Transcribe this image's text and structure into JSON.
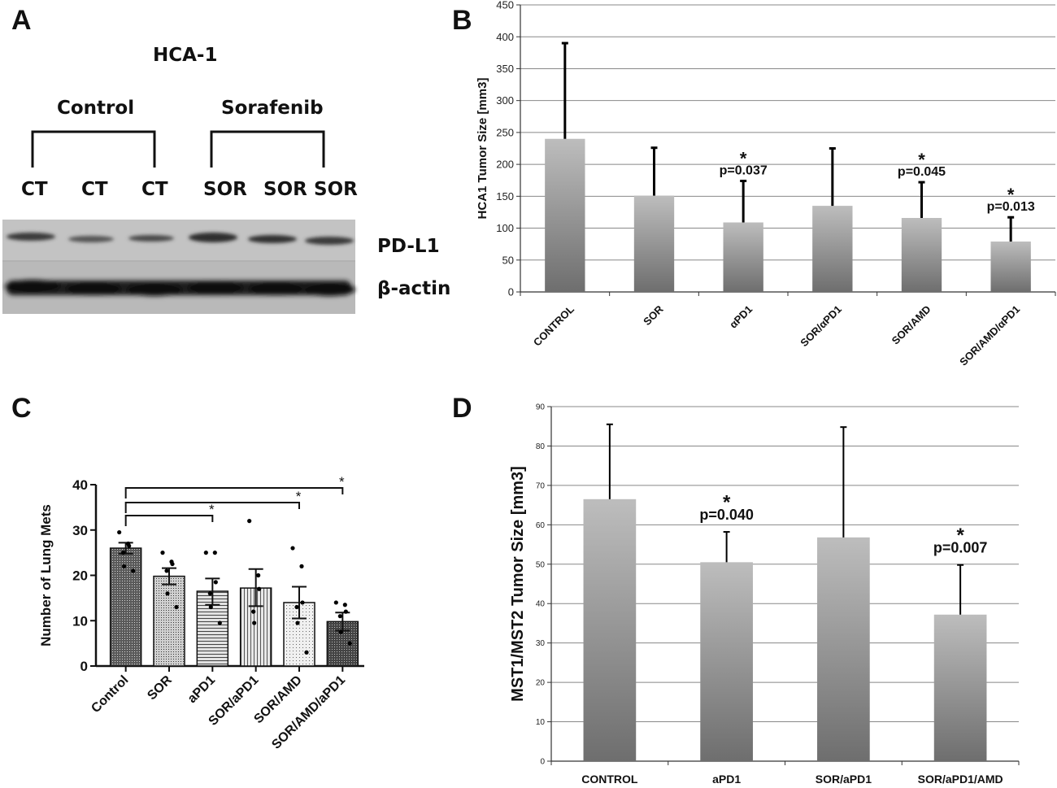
{
  "panels": {
    "A": {
      "letter": "A",
      "cell_line": "HCA-1",
      "group_control": "Control",
      "group_treated": "Sorafenib",
      "lanes": [
        "CT",
        "CT",
        "CT",
        "SOR",
        "SOR",
        "SOR"
      ],
      "band_labels": [
        "PD-L1",
        "β-actin"
      ]
    },
    "B": {
      "letter": "B"
    },
    "C": {
      "letter": "C"
    },
    "D": {
      "letter": "D"
    }
  },
  "chart_data": [
    {
      "id": "B",
      "type": "bar",
      "title": "",
      "ylabel": "HCA1 Tumor Size  [mm3]",
      "xlabel": "",
      "ylim": [
        0,
        450
      ],
      "yticks": [
        0,
        50,
        100,
        150,
        200,
        250,
        300,
        350,
        400,
        450
      ],
      "grid": true,
      "categories": [
        "CONTROL",
        "SOR",
        "αPD1",
        "SOR/αPD1",
        "SOR/AMD",
        "SOR/AMD/αPD1"
      ],
      "values": [
        240,
        151,
        109,
        135,
        116,
        79
      ],
      "error_upper": [
        390,
        226,
        174,
        225,
        172,
        117
      ],
      "annotations": [
        {
          "category": "αPD1",
          "star": "*",
          "text": "p=0.037"
        },
        {
          "category": "SOR/AMD",
          "star": "*",
          "text": "p=0.045"
        },
        {
          "category": "SOR/AMD/αPD1",
          "star": "*",
          "text": "p=0.013"
        }
      ]
    },
    {
      "id": "C",
      "type": "bar",
      "title": "",
      "ylabel": "Number of Lung Mets",
      "xlabel": "",
      "ylim": [
        0,
        40
      ],
      "yticks": [
        0,
        10,
        20,
        30,
        40
      ],
      "grid": false,
      "categories": [
        "Control",
        "SOR",
        "aPD1",
        "SOR/aPD1",
        "SOR/AMD",
        "SOR/AMD/aPD1"
      ],
      "values": [
        26,
        19.8,
        16.5,
        17.2,
        14,
        9.8
      ],
      "error_low": [
        24.8,
        18,
        13.5,
        13.2,
        10.5,
        7.8
      ],
      "error_high": [
        27.2,
        21.6,
        19.3,
        21.4,
        17.5,
        11.8
      ],
      "points": [
        [
          29.5,
          27,
          26.5,
          25,
          22,
          21
        ],
        [
          25,
          23,
          22.5,
          21,
          16,
          13
        ],
        [
          25,
          25,
          18.5,
          16,
          13,
          9.5
        ],
        [
          32,
          20,
          17,
          12,
          9.5
        ],
        [
          26,
          22,
          14,
          13,
          9.5,
          3
        ],
        [
          14,
          13.5,
          12,
          11,
          7.5,
          5
        ]
      ],
      "significance": [
        {
          "from": "Control",
          "to": "aPD1",
          "star": "*"
        },
        {
          "from": "Control",
          "to": "SOR/AMD",
          "star": "*"
        },
        {
          "from": "Control",
          "to": "SOR/AMD/aPD1",
          "star": "*"
        }
      ]
    },
    {
      "id": "D",
      "type": "bar",
      "title": "",
      "ylabel": "MST1/MST2 Tumor Size  [mm3]",
      "xlabel": "",
      "ylim": [
        0,
        90
      ],
      "yticks": [
        0,
        10,
        20,
        30,
        40,
        50,
        60,
        70,
        80,
        90
      ],
      "grid": true,
      "categories": [
        "CONTROL",
        "aPD1",
        "SOR/aPD1",
        "SOR/aPD1/AMD"
      ],
      "values": [
        66.5,
        50.5,
        56.8,
        37.2
      ],
      "error_upper": [
        85.5,
        58.2,
        84.8,
        49.8
      ],
      "annotations": [
        {
          "category": "aPD1",
          "star": "*",
          "text": "p=0.040"
        },
        {
          "category": "SOR/aPD1/AMD",
          "star": "*",
          "text": "p=0.007"
        }
      ]
    }
  ]
}
